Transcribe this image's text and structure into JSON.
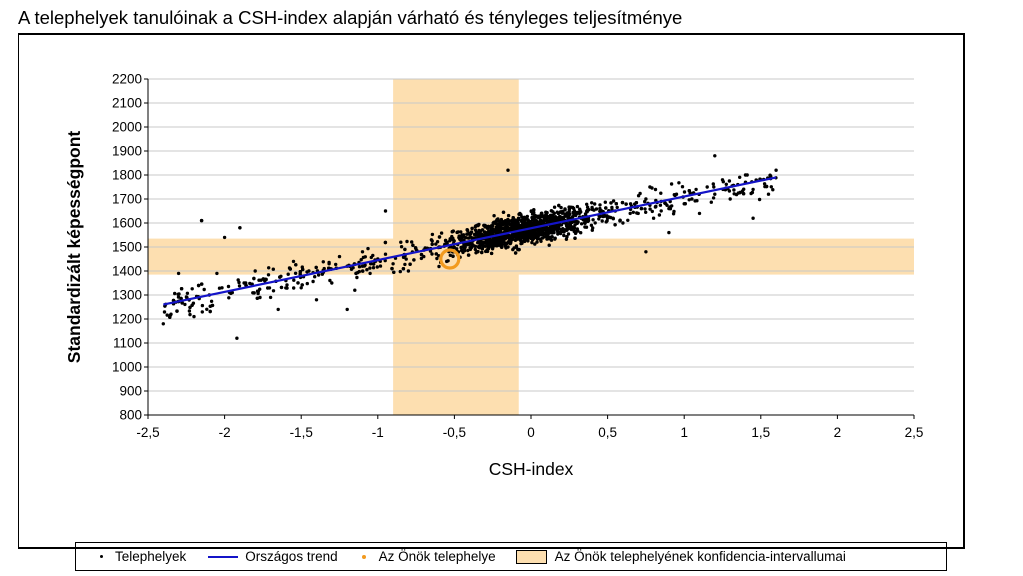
{
  "chart_data": {
    "type": "scatter",
    "title": "A telephelyek tanulóinak a CSH-index alapján várható és tényleges teljesítménye",
    "xlabel": "CSH-index",
    "ylabel": "Standardizált képességpont",
    "xlim": [
      -2.5,
      2.5
    ],
    "ylim": [
      800,
      2200
    ],
    "x_ticks": [
      -2.5,
      -2,
      -1.5,
      -1,
      -0.5,
      0,
      0.5,
      1,
      1.5,
      2,
      2.5
    ],
    "x_tick_labels": [
      "-2,5",
      "-2",
      "-1,5",
      "-1",
      "-0,5",
      "0",
      "0,5",
      "1",
      "1,5",
      "2",
      "2,5"
    ],
    "y_ticks": [
      800,
      900,
      1000,
      1100,
      1200,
      1300,
      1400,
      1500,
      1600,
      1700,
      1800,
      1900,
      2000,
      2100,
      2200
    ],
    "y_tick_labels": [
      "800",
      "900",
      "1000",
      "1100",
      "1200",
      "1300",
      "1400",
      "1500",
      "1600",
      "1700",
      "1800",
      "1900",
      "2000",
      "2100",
      "2200"
    ],
    "grid": "horizontal",
    "legend_position": "bottom",
    "confidence_x": [
      -0.9,
      -0.08
    ],
    "confidence_y": [
      1385,
      1535
    ],
    "trend": {
      "x": [
        -2.4,
        1.6
      ],
      "y": [
        1260,
        1790
      ]
    },
    "own_site": {
      "x": -0.53,
      "y": 1450
    },
    "scatter_sample": {
      "x": [
        -2.4,
        -2.35,
        -2.3,
        -2.2,
        -2.15,
        -2.1,
        -2.05,
        -2.0,
        -1.95,
        -1.92,
        -1.9,
        -1.8,
        -1.7,
        -1.65,
        -1.6,
        -1.55,
        -1.5,
        -1.45,
        -1.4,
        -1.35,
        -1.3,
        -1.25,
        -1.2,
        -1.15,
        -1.1,
        -1.05,
        -1.0,
        -0.95,
        -0.9,
        -0.85,
        -0.8,
        -0.75,
        -0.7,
        -0.65,
        -0.6,
        -0.55,
        -0.5,
        -0.45,
        -0.4,
        -0.35,
        -0.3,
        -0.25,
        -0.2,
        -0.15,
        -0.1,
        -0.05,
        0.0,
        0.05,
        0.1,
        0.15,
        0.2,
        0.25,
        0.3,
        0.35,
        0.4,
        0.45,
        0.5,
        0.55,
        0.6,
        0.65,
        0.7,
        0.75,
        0.8,
        0.85,
        0.9,
        0.95,
        1.0,
        1.05,
        1.1,
        1.15,
        1.2,
        1.25,
        1.3,
        1.35,
        1.4,
        1.45,
        1.5,
        1.55,
        1.6,
        -2.15,
        -1.9,
        -1.2,
        -0.15,
        0.75,
        1.2,
        1.45,
        -0.95,
        0.9
      ],
      "y": [
        1180,
        1220,
        1390,
        1210,
        1610,
        1300,
        1390,
        1540,
        1310,
        1120,
        1580,
        1400,
        1290,
        1240,
        1360,
        1440,
        1330,
        1400,
        1280,
        1410,
        1350,
        1460,
        1420,
        1320,
        1480,
        1390,
        1450,
        1470,
        1430,
        1520,
        1400,
        1490,
        1460,
        1530,
        1500,
        1440,
        1480,
        1550,
        1520,
        1480,
        1590,
        1530,
        1560,
        1500,
        1570,
        1600,
        1540,
        1590,
        1620,
        1560,
        1610,
        1580,
        1640,
        1600,
        1570,
        1660,
        1620,
        1650,
        1600,
        1680,
        1640,
        1700,
        1620,
        1690,
        1660,
        1720,
        1680,
        1700,
        1640,
        1750,
        1720,
        1780,
        1700,
        1760,
        1800,
        1740,
        1780,
        1720,
        1820,
        1610,
        1580,
        1240,
        1820,
        1480,
        1880,
        1620,
        1650,
        1560
      ]
    }
  },
  "legend": {
    "sites": "Telephelyek",
    "trend": "Országos trend",
    "own": "Az Önök telephelye",
    "ci": "Az Önök telephelyének konfidencia-intervallumai"
  },
  "colors": {
    "dots": "#000000",
    "trend": "#1414c8",
    "own_site": "#f29a1e",
    "ci_band": "#fddfb0",
    "grid": "#c8c8c8"
  }
}
